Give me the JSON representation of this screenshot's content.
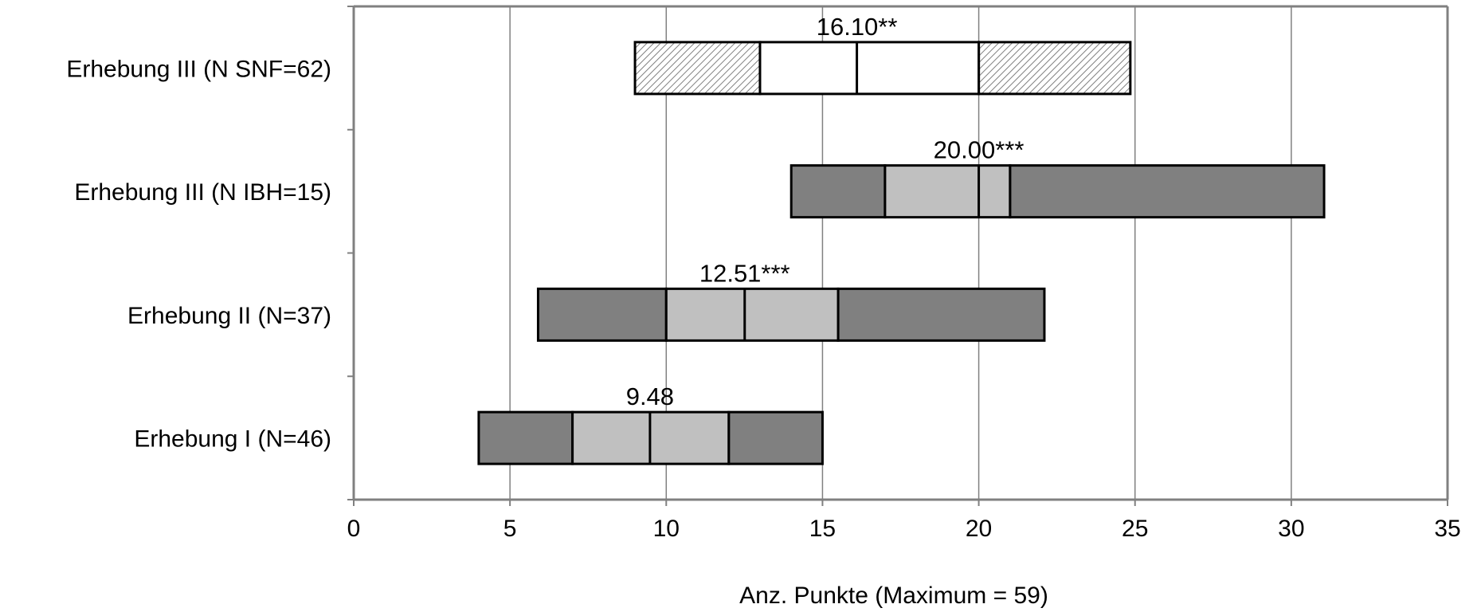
{
  "chart_data": {
    "type": "box",
    "orientation": "horizontal",
    "title": "",
    "xlabel": "Anz. Punkte (Maximum = 59)",
    "ylabel": "",
    "xlim": [
      0,
      35
    ],
    "xticks": [
      "0",
      "5",
      "10",
      "15",
      "20",
      "25",
      "30",
      "35"
    ],
    "grid": "vertical",
    "legend": "none",
    "colors": {
      "whisker_fill": "#808080",
      "box_fill": "#c0c0c0",
      "hatched_box_fill": "#ffffff",
      "hatch_line": "#808080",
      "grid": "#808080",
      "axis": "#808080",
      "outline": "#000000"
    },
    "series": [
      {
        "label": "Erhebung III (N SNF=62)",
        "min": 9.0,
        "q1": 13.0,
        "median": 16.1,
        "q3": 20.0,
        "max": 24.85,
        "median_label": "16.10**",
        "style": "hatched"
      },
      {
        "label": "Erhebung III (N IBH=15)",
        "min": 14.0,
        "q1": 17.0,
        "median": 20.0,
        "q3": 21.0,
        "max": 31.05,
        "median_label": "20.00***",
        "style": "gray"
      },
      {
        "label": "Erhebung II (N=37)",
        "min": 5.9,
        "q1": 10.0,
        "median": 12.51,
        "q3": 15.5,
        "max": 22.1,
        "median_label": "12.51***",
        "style": "gray"
      },
      {
        "label": "Erhebung I (N=46)",
        "min": 4.0,
        "q1": 7.0,
        "median": 9.48,
        "q3": 12.0,
        "max": 15.0,
        "median_label": "9.48",
        "style": "gray"
      }
    ]
  }
}
